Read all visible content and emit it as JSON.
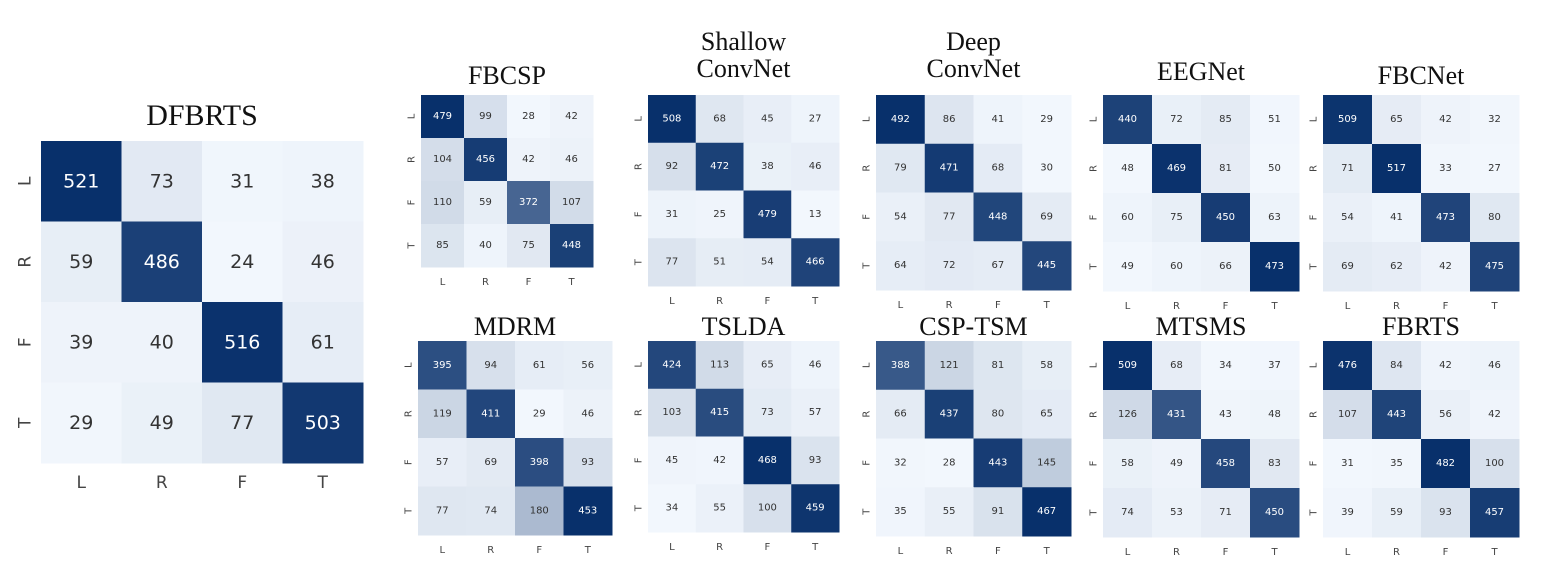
{
  "figure": {
    "color_scale": {
      "low": "#f2f7fd",
      "high": "#08306b",
      "text_dark": "#333333",
      "text_light": "#ffffff"
    }
  },
  "chart_data": [
    {
      "type": "heatmap",
      "title": "DFBRTS",
      "x_categories": [
        "L",
        "R",
        "F",
        "T"
      ],
      "y_categories": [
        "L",
        "R",
        "F",
        "T"
      ],
      "values": [
        [
          521,
          73,
          31,
          38
        ],
        [
          59,
          486,
          24,
          46
        ],
        [
          39,
          40,
          516,
          61
        ],
        [
          29,
          49,
          77,
          503
        ]
      ]
    },
    {
      "type": "heatmap",
      "title": "FBCSP",
      "x_categories": [
        "L",
        "R",
        "F",
        "T"
      ],
      "y_categories": [
        "L",
        "R",
        "F",
        "T"
      ],
      "values": [
        [
          479,
          99,
          28,
          42
        ],
        [
          104,
          456,
          42,
          46
        ],
        [
          110,
          59,
          372,
          107
        ],
        [
          85,
          40,
          75,
          448
        ]
      ]
    },
    {
      "type": "heatmap",
      "title": "Shallow ConvNet",
      "x_categories": [
        "L",
        "R",
        "F",
        "T"
      ],
      "y_categories": [
        "L",
        "R",
        "F",
        "T"
      ],
      "values": [
        [
          508,
          68,
          45,
          27
        ],
        [
          92,
          472,
          38,
          46
        ],
        [
          31,
          25,
          479,
          13
        ],
        [
          77,
          51,
          54,
          466
        ]
      ]
    },
    {
      "type": "heatmap",
      "title": "Deep ConvNet",
      "x_categories": [
        "L",
        "R",
        "F",
        "T"
      ],
      "y_categories": [
        "L",
        "R",
        "F",
        "T"
      ],
      "values": [
        [
          492,
          86,
          41,
          29
        ],
        [
          79,
          471,
          68,
          30
        ],
        [
          54,
          77,
          448,
          69
        ],
        [
          64,
          72,
          67,
          445
        ]
      ]
    },
    {
      "type": "heatmap",
      "title": "EEGNet",
      "x_categories": [
        "L",
        "R",
        "F",
        "T"
      ],
      "y_categories": [
        "L",
        "R",
        "F",
        "T"
      ],
      "values": [
        [
          440,
          72,
          85,
          51
        ],
        [
          48,
          469,
          81,
          50
        ],
        [
          60,
          75,
          450,
          63
        ],
        [
          49,
          60,
          66,
          473
        ]
      ]
    },
    {
      "type": "heatmap",
      "title": "FBCNet",
      "x_categories": [
        "L",
        "R",
        "F",
        "T"
      ],
      "y_categories": [
        "L",
        "R",
        "F",
        "T"
      ],
      "values": [
        [
          509,
          65,
          42,
          32
        ],
        [
          71,
          517,
          33,
          27
        ],
        [
          54,
          41,
          473,
          80
        ],
        [
          69,
          62,
          42,
          475
        ]
      ]
    },
    {
      "type": "heatmap",
      "title": "MDRM",
      "x_categories": [
        "L",
        "R",
        "F",
        "T"
      ],
      "y_categories": [
        "L",
        "R",
        "F",
        "T"
      ],
      "values": [
        [
          395,
          94,
          61,
          56
        ],
        [
          119,
          411,
          29,
          46
        ],
        [
          57,
          69,
          398,
          93
        ],
        [
          77,
          74,
          180,
          453
        ]
      ]
    },
    {
      "type": "heatmap",
      "title": "TSLDA",
      "x_categories": [
        "L",
        "R",
        "F",
        "T"
      ],
      "y_categories": [
        "L",
        "R",
        "F",
        "T"
      ],
      "values": [
        [
          424,
          113,
          65,
          46
        ],
        [
          103,
          415,
          73,
          57
        ],
        [
          45,
          42,
          468,
          93
        ],
        [
          34,
          55,
          100,
          459
        ]
      ]
    },
    {
      "type": "heatmap",
      "title": "CSP-TSM",
      "x_categories": [
        "L",
        "R",
        "F",
        "T"
      ],
      "y_categories": [
        "L",
        "R",
        "F",
        "T"
      ],
      "values": [
        [
          388,
          121,
          81,
          58
        ],
        [
          66,
          437,
          80,
          65
        ],
        [
          32,
          28,
          443,
          145
        ],
        [
          35,
          55,
          91,
          467
        ]
      ]
    },
    {
      "type": "heatmap",
      "title": "MTSMS",
      "x_categories": [
        "L",
        "R",
        "F",
        "T"
      ],
      "y_categories": [
        "L",
        "R",
        "F",
        "T"
      ],
      "values": [
        [
          509,
          68,
          34,
          37
        ],
        [
          126,
          431,
          43,
          48
        ],
        [
          58,
          49,
          458,
          83
        ],
        [
          74,
          53,
          71,
          450
        ]
      ]
    },
    {
      "type": "heatmap",
      "title": "FBRTS",
      "x_categories": [
        "L",
        "R",
        "F",
        "T"
      ],
      "y_categories": [
        "L",
        "R",
        "F",
        "T"
      ],
      "values": [
        [
          476,
          84,
          42,
          46
        ],
        [
          107,
          443,
          56,
          42
        ],
        [
          31,
          35,
          482,
          100
        ],
        [
          39,
          59,
          93,
          457
        ]
      ]
    }
  ]
}
